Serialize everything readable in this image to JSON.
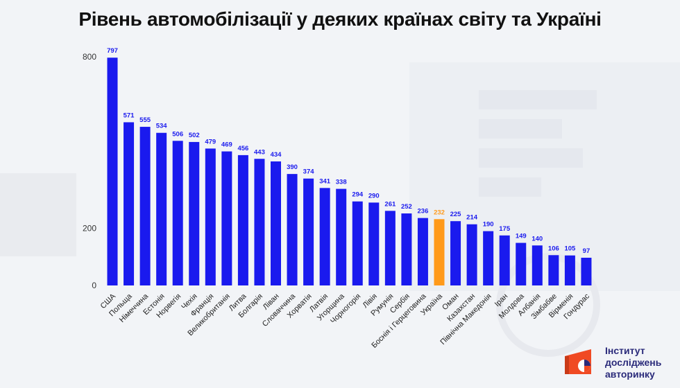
{
  "title": "Рівень автомобілізації у деяких країнах світу та Україні",
  "colors": {
    "bar": "#1a1aee",
    "highlight": "#ff9a1a",
    "label": "#1a1aee",
    "highlight_label": "#ff9a1a"
  },
  "chart_data": {
    "type": "bar",
    "title": "Рівень автомобілізації у деяких країнах світу та Україні",
    "xlabel": "",
    "ylabel": "",
    "ylim": [
      0,
      800
    ],
    "yticks": [
      0,
      200,
      800
    ],
    "highlight_category": "Україна",
    "categories": [
      "США",
      "Польща",
      "Німеччина",
      "Естонія",
      "Норвегія",
      "Чехія",
      "Франція",
      "Великобританія",
      "Литва",
      "Болгарія",
      "Ліван",
      "Словаччина",
      "Хорватія",
      "Латвія",
      "Угорщина",
      "Чорногорія",
      "Лівія",
      "Румунія",
      "Сербія",
      "Боснія і Герцеговина",
      "Україна",
      "Оман",
      "Казахстан",
      "Північна Македонія",
      "Іран",
      "Молдова",
      "Албанія",
      "Зімбабве",
      "Вірменія",
      "Гондурас"
    ],
    "values": [
      797,
      571,
      555,
      534,
      506,
      502,
      479,
      469,
      456,
      443,
      434,
      390,
      374,
      341,
      338,
      294,
      290,
      261,
      252,
      236,
      232,
      225,
      214,
      190,
      175,
      149,
      140,
      106,
      105,
      97
    ]
  },
  "logo": {
    "line1": "Інститут",
    "line2": "досліджень",
    "line3": "авторинку"
  }
}
